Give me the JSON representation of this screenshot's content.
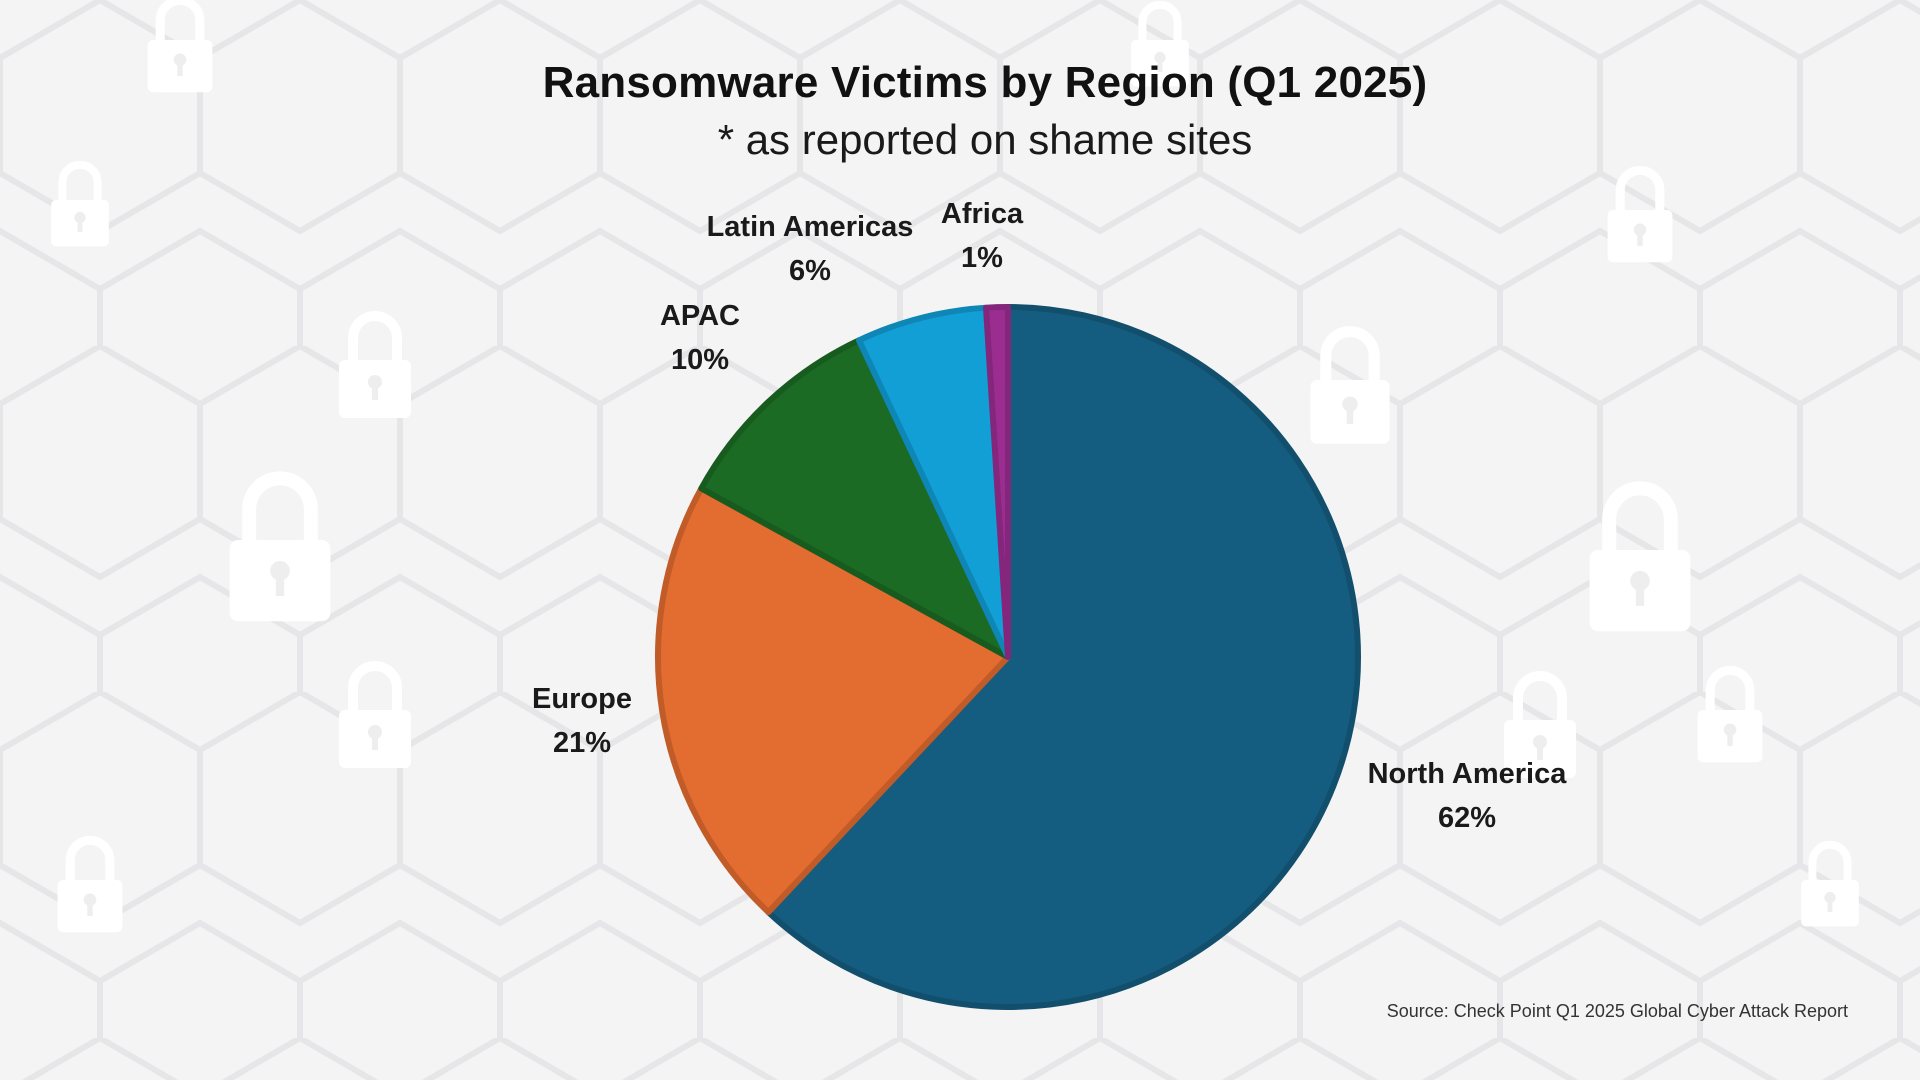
{
  "chart_data": {
    "type": "pie",
    "title": "Ransomware Victims by Region (Q1 2025)",
    "subtitle": "* as reported on shame sites",
    "slices": [
      {
        "label": "North America",
        "value": 62,
        "display": "62%",
        "color": "#155d80"
      },
      {
        "label": "Europe",
        "value": 21,
        "display": "21%",
        "color": "#e36c30"
      },
      {
        "label": "APAC",
        "value": 10,
        "display": "10%",
        "color": "#1b6b24"
      },
      {
        "label": "Latin Americas",
        "value": 6,
        "display": "6%",
        "color": "#129fd6"
      },
      {
        "label": "Africa",
        "value": 1,
        "display": "1%",
        "color": "#9b2d91"
      }
    ],
    "start": "12 o'clock",
    "direction": "clockwise",
    "legend": "none (data labels outside slices)"
  },
  "source": "Source: Check Point Q1 2025 Global Cyber Attack Report",
  "background": {
    "color": "#f4f4f5",
    "pattern": "hexagon-lock-icon"
  }
}
